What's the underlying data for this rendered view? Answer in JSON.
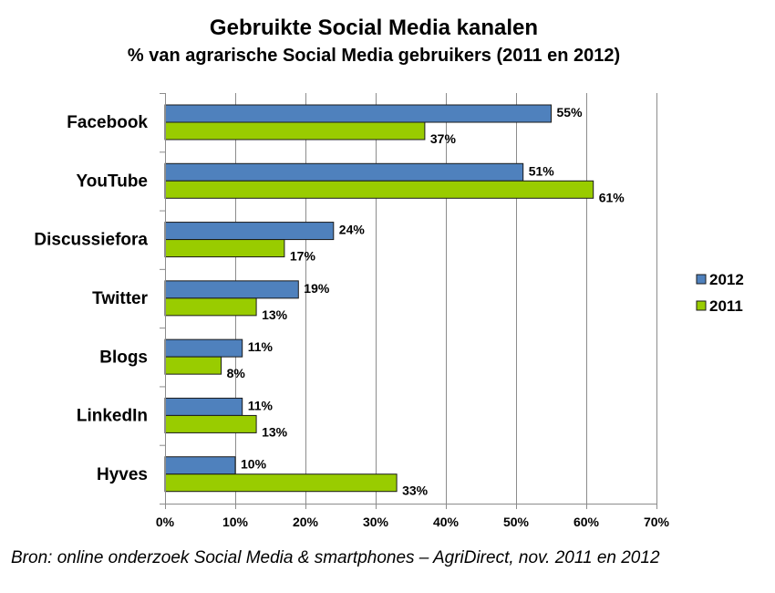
{
  "chart_data": {
    "type": "bar",
    "orientation": "horizontal",
    "title": "Gebruikte Social Media kanalen",
    "subtitle": "% van agrarische Social Media gebruikers (2011 en 2012)",
    "categories": [
      "Facebook",
      "YouTube",
      "Discussiefora",
      "Twitter",
      "Blogs",
      "LinkedIn",
      "Hyves"
    ],
    "series": [
      {
        "name": "2012",
        "color": "#4F81BD",
        "values": [
          55,
          51,
          24,
          19,
          11,
          11,
          10
        ],
        "labels": [
          "55%",
          "51%",
          "24%",
          "19%",
          "11%",
          "11%",
          "10%"
        ]
      },
      {
        "name": "2011",
        "color": "#99CC00",
        "values": [
          37,
          61,
          17,
          13,
          8,
          13,
          33
        ],
        "labels": [
          "37%",
          "61%",
          "17%",
          "13%",
          "8%",
          "13%",
          "33%"
        ]
      }
    ],
    "xlim": [
      0,
      70
    ],
    "xticks": [
      0,
      10,
      20,
      30,
      40,
      50,
      60,
      70
    ],
    "xtick_labels": [
      "0%",
      "10%",
      "20%",
      "30%",
      "40%",
      "50%",
      "60%",
      "70%"
    ],
    "grid": "vertical",
    "legend": "right"
  },
  "source": "Bron: online onderzoek Social Media & smartphones – AgriDirect, nov. 2011 en 2012"
}
